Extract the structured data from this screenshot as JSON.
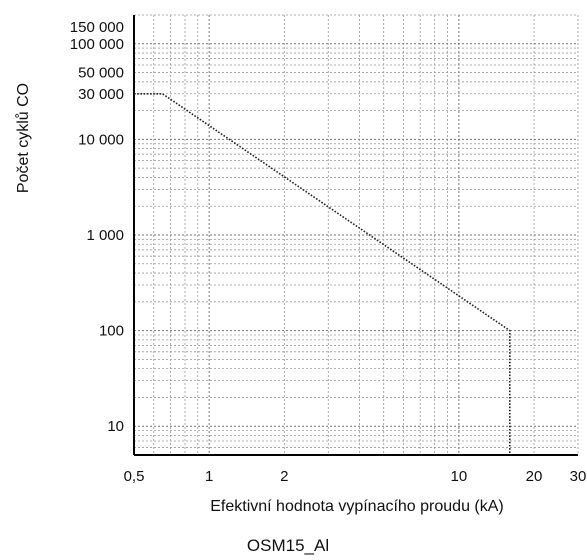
{
  "chart_data": {
    "type": "line",
    "title": "",
    "caption": "OSM15_Al",
    "xlabel": "Efektivní hodnota vypínacího proudu (kA)",
    "ylabel": "Počet cyklů CO",
    "x_scale": "log",
    "y_scale": "log",
    "xlim": [
      0.5,
      30
    ],
    "ylim": [
      5,
      200000
    ],
    "grid": true,
    "x_ticks": [
      {
        "value": 0.5,
        "label": "0,5"
      },
      {
        "value": 1,
        "label": "1"
      },
      {
        "value": 2,
        "label": "2"
      },
      {
        "value": 10,
        "label": "10"
      },
      {
        "value": 20,
        "label": "20"
      },
      {
        "value": 30,
        "label": "30"
      }
    ],
    "y_ticks": [
      {
        "value": 10,
        "label": "10"
      },
      {
        "value": 100,
        "label": "100"
      },
      {
        "value": 1000,
        "label": "1 000"
      },
      {
        "value": 10000,
        "label": "10 000"
      },
      {
        "value": 30000,
        "label": "30 000"
      },
      {
        "value": 50000,
        "label": "50 000"
      },
      {
        "value": 100000,
        "label": "100 000"
      },
      {
        "value": 150000,
        "label": "150 000"
      }
    ],
    "series": [
      {
        "x": [
          0.5,
          0.65,
          16,
          16
        ],
        "y": [
          30000,
          30000,
          100,
          5
        ]
      }
    ]
  }
}
